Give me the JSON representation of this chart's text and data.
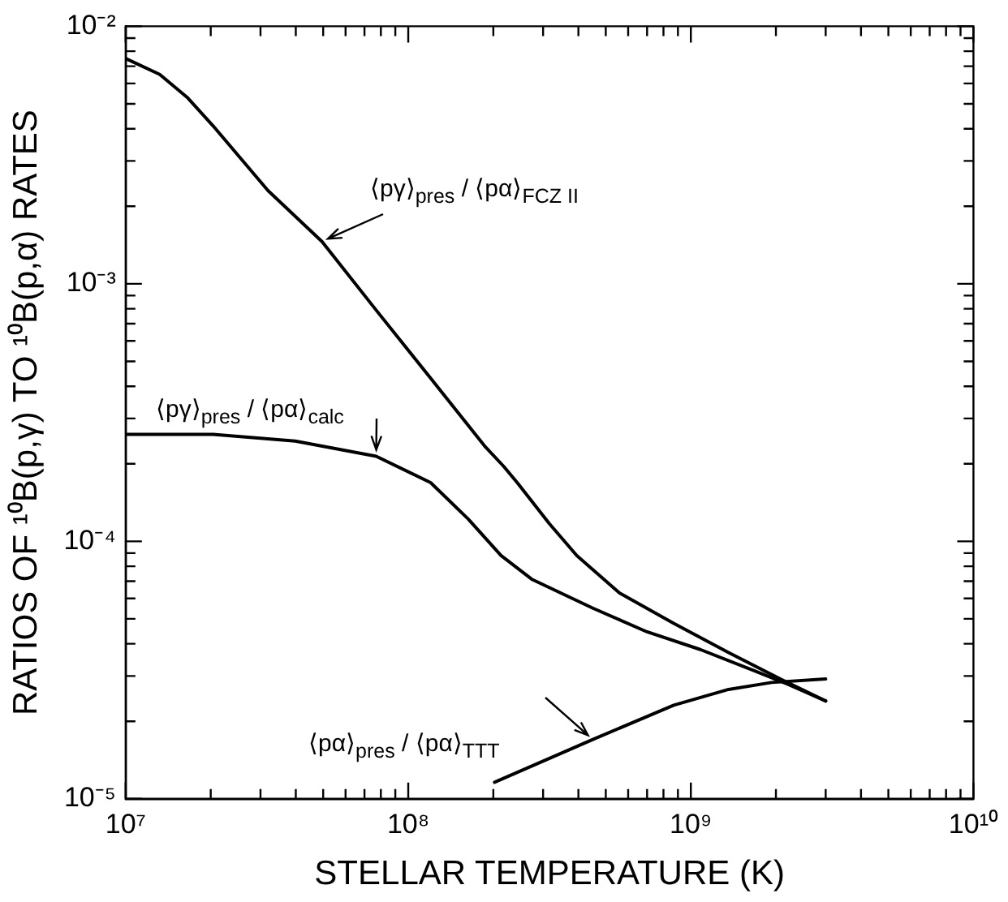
{
  "chart_data": {
    "type": "line",
    "xlabel": "STELLAR TEMPERATURE (K)",
    "ylabel": "RATIOS OF ¹⁰B(p,γ) TO ¹⁰B(p,α) RATES",
    "log": "xy",
    "grid": false,
    "legend": false,
    "marker": "none",
    "line_style": "solid",
    "xlim": [
      10000000,
      10000000000
    ],
    "ylim": [
      1e-05,
      0.01
    ],
    "xticks": [
      {
        "value": 10000000,
        "label": "10⁷"
      },
      {
        "value": 20000000,
        "label": null
      },
      {
        "value": 30000000,
        "label": null
      },
      {
        "value": 40000000,
        "label": null
      },
      {
        "value": 50000000,
        "label": null
      },
      {
        "value": 60000000,
        "label": null
      },
      {
        "value": 70000000,
        "label": null
      },
      {
        "value": 80000000,
        "label": null
      },
      {
        "value": 90000000,
        "label": null
      },
      {
        "value": 100000000,
        "label": "10⁸"
      },
      {
        "value": 200000000,
        "label": null
      },
      {
        "value": 300000000,
        "label": null
      },
      {
        "value": 400000000,
        "label": null
      },
      {
        "value": 500000000,
        "label": null
      },
      {
        "value": 600000000,
        "label": null
      },
      {
        "value": 700000000,
        "label": null
      },
      {
        "value": 800000000,
        "label": null
      },
      {
        "value": 900000000,
        "label": null
      },
      {
        "value": 1000000000,
        "label": "10⁹"
      },
      {
        "value": 2000000000,
        "label": null
      },
      {
        "value": 3000000000,
        "label": null
      },
      {
        "value": 4000000000,
        "label": null
      },
      {
        "value": 5000000000,
        "label": null
      },
      {
        "value": 6000000000,
        "label": null
      },
      {
        "value": 7000000000,
        "label": null
      },
      {
        "value": 8000000000,
        "label": null
      },
      {
        "value": 9000000000,
        "label": null
      },
      {
        "value": 10000000000,
        "label": "10¹⁰"
      }
    ],
    "yticks": [
      {
        "value": 1e-05,
        "label": "10⁻⁵"
      },
      {
        "value": 2e-05,
        "label": null
      },
      {
        "value": 3e-05,
        "label": null
      },
      {
        "value": 4e-05,
        "label": null
      },
      {
        "value": 5e-05,
        "label": null
      },
      {
        "value": 6e-05,
        "label": null
      },
      {
        "value": 7e-05,
        "label": null
      },
      {
        "value": 8e-05,
        "label": null
      },
      {
        "value": 9e-05,
        "label": null
      },
      {
        "value": 0.0001,
        "label": "10⁻⁴"
      },
      {
        "value": 0.0002,
        "label": null
      },
      {
        "value": 0.0003,
        "label": null
      },
      {
        "value": 0.0004,
        "label": null
      },
      {
        "value": 0.0005,
        "label": null
      },
      {
        "value": 0.0006,
        "label": null
      },
      {
        "value": 0.0007,
        "label": null
      },
      {
        "value": 0.0008,
        "label": null
      },
      {
        "value": 0.0009,
        "label": null
      },
      {
        "value": 0.001,
        "label": "10⁻³"
      },
      {
        "value": 0.002,
        "label": null
      },
      {
        "value": 0.003,
        "label": null
      },
      {
        "value": 0.004,
        "label": null
      },
      {
        "value": 0.005,
        "label": null
      },
      {
        "value": 0.006,
        "label": null
      },
      {
        "value": 0.007,
        "label": null
      },
      {
        "value": 0.008,
        "label": null
      },
      {
        "value": 0.009,
        "label": null
      },
      {
        "value": 0.01,
        "label": "10⁻²"
      }
    ],
    "series": [
      {
        "name": "⟨pγ⟩$_{pres}$ / ⟨pα⟩$_{FCZ II}$",
        "color": "#000000",
        "x": [
          10000000,
          13200000,
          16500000,
          20400000,
          31900000,
          49500000,
          77000000,
          120000000,
          186000000,
          218000000,
          243000000,
          316000000,
          395000000,
          559000000,
          870000000,
          1360000000,
          2100000000,
          3000000000
        ],
        "values": [
          0.0075,
          0.0065,
          0.0053,
          0.0041,
          0.0023,
          0.00146,
          0.00079,
          0.00043,
          0.000235,
          0.000195,
          0.000169,
          0.000117,
          8.8e-05,
          6.3e-05,
          4.8e-05,
          3.7e-05,
          2.9e-05,
          2.4e-05
        ]
      },
      {
        "name": "⟨pγ⟩$_{pres}$ / ⟨pα⟩$_{calc}$",
        "color": "#000000",
        "x": [
          10000000,
          20400000,
          39800000,
          77000000,
          120000000,
          163000000,
          213000000,
          275000000,
          450000000,
          700000000,
          1080000000,
          1690000000,
          2200000000,
          3000000000
        ],
        "values": [
          0.00026,
          0.00026,
          0.000245,
          0.000214,
          0.000169,
          0.000122,
          8.8e-05,
          7.1e-05,
          5.5e-05,
          4.45e-05,
          3.8e-05,
          3.13e-05,
          2.79e-05,
          2.4e-05
        ]
      },
      {
        "name": "⟨pα⟩$_{pres}$ / ⟨pα⟩$_{TTT}$",
        "color": "#000000",
        "x": [
          202000000,
          450000000,
          870000000,
          1360000000,
          1930000000,
          3000000000
        ],
        "values": [
          1.16e-05,
          1.7e-05,
          2.31e-05,
          2.66e-05,
          2.83e-05,
          2.92e-05
        ]
      }
    ]
  }
}
